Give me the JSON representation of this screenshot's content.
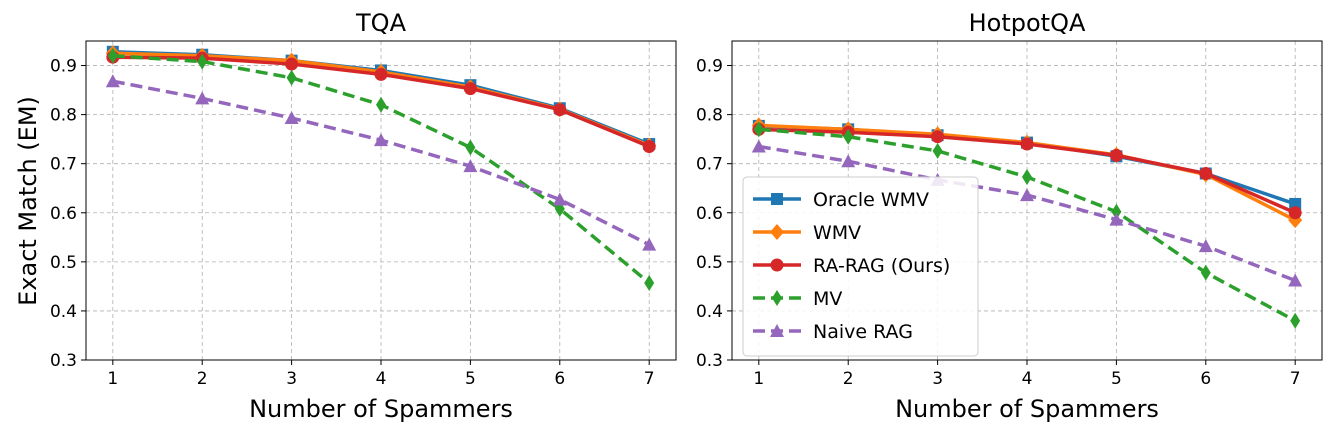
{
  "chart_data": [
    {
      "type": "line",
      "title": "TQA",
      "xlabel": "Number of Spammers",
      "ylabel": "Exact Match (EM)",
      "x": [
        1,
        2,
        3,
        4,
        5,
        6,
        7
      ],
      "xticks": [
        "1",
        "2",
        "3",
        "4",
        "5",
        "6",
        "7"
      ],
      "xlim": [
        0.7,
        7.3
      ],
      "ylim": [
        0.3,
        0.95
      ],
      "yticks": [
        "0.3",
        "0.4",
        "0.5",
        "0.6",
        "0.7",
        "0.8",
        "0.9"
      ],
      "grid": true,
      "series": [
        {
          "name": "Oracle WMV",
          "color": "#1f77b4",
          "marker": "square",
          "dash": false,
          "values": [
            0.928,
            0.922,
            0.91,
            0.89,
            0.86,
            0.813,
            0.74
          ]
        },
        {
          "name": "WMV",
          "color": "#ff7f0e",
          "marker": "diamond",
          "dash": false,
          "values": [
            0.925,
            0.92,
            0.91,
            0.887,
            0.856,
            0.811,
            0.737
          ]
        },
        {
          "name": "RA-RAG (Ours)",
          "color": "#d62728",
          "marker": "circle",
          "dash": false,
          "values": [
            0.917,
            0.915,
            0.903,
            0.882,
            0.853,
            0.81,
            0.735
          ]
        },
        {
          "name": "MV",
          "color": "#2ca02c",
          "marker": "thin_diamond",
          "dash": true,
          "values": [
            0.92,
            0.908,
            0.875,
            0.82,
            0.733,
            0.608,
            0.457
          ]
        },
        {
          "name": "Naive RAG",
          "color": "#9467bd",
          "marker": "triangle",
          "dash": true,
          "values": [
            0.868,
            0.833,
            0.793,
            0.748,
            0.695,
            0.627,
            0.535
          ]
        }
      ]
    },
    {
      "type": "line",
      "title": "HotpotQA",
      "xlabel": "Number of Spammers",
      "ylabel": "",
      "x": [
        1,
        2,
        3,
        4,
        5,
        6,
        7
      ],
      "xticks": [
        "1",
        "2",
        "3",
        "4",
        "5",
        "6",
        "7"
      ],
      "xlim": [
        0.7,
        7.3
      ],
      "ylim": [
        0.3,
        0.95
      ],
      "yticks": [
        "0.3",
        "0.4",
        "0.5",
        "0.6",
        "0.7",
        "0.8",
        "0.9"
      ],
      "grid": true,
      "legend": "lower-left",
      "series": [
        {
          "name": "Oracle WMV",
          "color": "#1f77b4",
          "marker": "square",
          "dash": false,
          "values": [
            0.777,
            0.77,
            0.758,
            0.743,
            0.715,
            0.68,
            0.618
          ]
        },
        {
          "name": "WMV",
          "color": "#ff7f0e",
          "marker": "diamond",
          "dash": false,
          "values": [
            0.778,
            0.77,
            0.76,
            0.743,
            0.718,
            0.678,
            0.585
          ]
        },
        {
          "name": "RA-RAG (Ours)",
          "color": "#d62728",
          "marker": "circle",
          "dash": false,
          "values": [
            0.77,
            0.764,
            0.755,
            0.74,
            0.717,
            0.68,
            0.6
          ]
        },
        {
          "name": "MV",
          "color": "#2ca02c",
          "marker": "thin_diamond",
          "dash": true,
          "values": [
            0.77,
            0.755,
            0.726,
            0.673,
            0.602,
            0.478,
            0.38
          ]
        },
        {
          "name": "Naive RAG",
          "color": "#9467bd",
          "marker": "triangle",
          "dash": true,
          "values": [
            0.735,
            0.705,
            0.667,
            0.636,
            0.586,
            0.532,
            0.462
          ]
        }
      ]
    }
  ]
}
